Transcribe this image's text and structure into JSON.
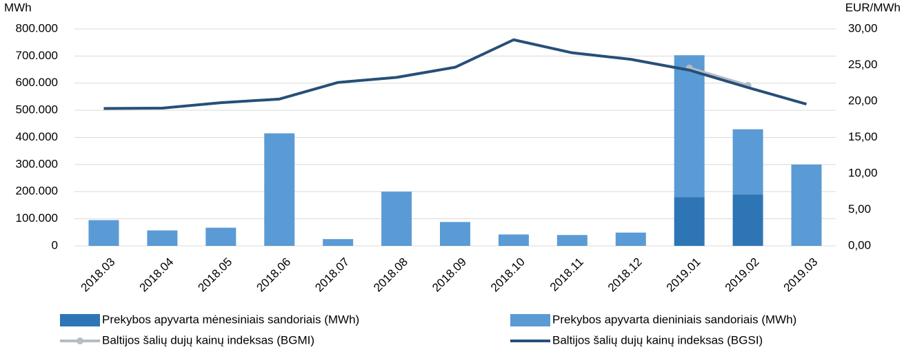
{
  "chart_data": {
    "type": "bar",
    "stacked": true,
    "y_label": "MWh",
    "y2_label": "EUR/MWh",
    "categories": [
      "2018.03",
      "2018.04",
      "2018.05",
      "2018.06",
      "2018.07",
      "2018.08",
      "2018.09",
      "2018.10",
      "2018.11",
      "2018.12",
      "2019.01",
      "2019.02",
      "2019.03"
    ],
    "series": [
      {
        "name": "Prekybos apyvarta mėnesiniais sandoriais (MWh)",
        "type": "bar",
        "color": "#2e75b6",
        "values": [
          0,
          0,
          0,
          0,
          0,
          0,
          0,
          0,
          0,
          0,
          180000,
          190000,
          0
        ]
      },
      {
        "name": "Prekybos apyvarta dieniniais sandoriais (MWh)",
        "type": "bar",
        "color": "#5b9bd5",
        "values": [
          95000,
          57000,
          67000,
          415000,
          25000,
          200000,
          88000,
          42000,
          40000,
          49000,
          523000,
          240000,
          300000
        ]
      },
      {
        "name": "Baltijos šalių dujų kainų indeksas (BGMI)",
        "type": "line",
        "axis": "y2",
        "color": "#b4bcc6",
        "marker": true,
        "values": [
          null,
          null,
          null,
          null,
          null,
          null,
          null,
          null,
          null,
          null,
          24.6,
          22.2,
          null
        ]
      },
      {
        "name": "Baltijos šalių dujų kainų indeksas (BGSI)",
        "type": "line",
        "axis": "y2",
        "color": "#264f78",
        "values": [
          19.0,
          19.05,
          19.8,
          20.3,
          22.6,
          23.3,
          24.7,
          28.5,
          26.7,
          25.8,
          24.3,
          21.9,
          19.6
        ]
      }
    ],
    "ylim": [
      0,
      800000
    ],
    "yticks": [
      0,
      {
        "value": 100000,
        "label": "100.000"
      },
      {
        "value": 200000,
        "label": "200.000"
      },
      {
        "value": 300000,
        "label": "300.000"
      },
      {
        "value": 400000,
        "label": "400.000"
      },
      {
        "value": 500000,
        "label": "500.000"
      },
      {
        "value": 600000,
        "label": "600.000"
      },
      {
        "value": 700000,
        "label": "700.000"
      },
      {
        "value": 800000,
        "label": "800.000"
      }
    ],
    "y2lim": [
      0,
      30
    ],
    "y2ticks": [
      {
        "value": 0,
        "label": "0,00"
      },
      {
        "value": 5,
        "label": "5,00"
      },
      {
        "value": 10,
        "label": "10,00"
      },
      {
        "value": 15,
        "label": "15,00"
      },
      {
        "value": 20,
        "label": "20,00"
      },
      {
        "value": 25,
        "label": "25,00"
      },
      {
        "value": 30,
        "label": "30,00"
      }
    ],
    "grid": true
  }
}
